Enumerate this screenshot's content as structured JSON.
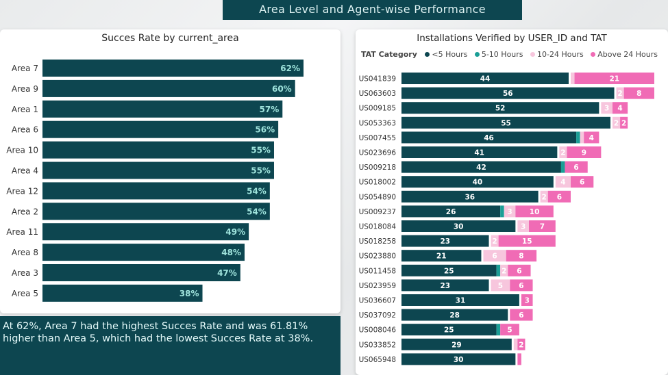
{
  "banner": {
    "title": "Area Level and Agent-wise Performance"
  },
  "colors": {
    "dark": "#0d4650",
    "teal": "#1a9e96",
    "light_pink": "#f7c6dd",
    "pink": "#f06bb5",
    "background": "#eceeef"
  },
  "insight": {
    "text": "At 62%, Area 7 had the highest Succes Rate and was 61.81% higher than Area 5, which had the lowest Succes Rate at 38%."
  },
  "chart_data": [
    {
      "type": "bar",
      "orientation": "horizontal",
      "title": "Succes Rate by current_area",
      "xlabel": "",
      "ylabel": "",
      "categories": [
        "Area 7",
        "Area 9",
        "Area 1",
        "Area 6",
        "Area 10",
        "Area 4",
        "Area 12",
        "Area 2",
        "Area 11",
        "Area 8",
        "Area 3",
        "Area 5"
      ],
      "values": [
        62,
        60,
        57,
        56,
        55,
        55,
        54,
        54,
        49,
        48,
        47,
        38
      ],
      "data_labels": [
        "62%",
        "60%",
        "57%",
        "56%",
        "55%",
        "55%",
        "54%",
        "54%",
        "49%",
        "48%",
        "47%",
        "38%"
      ],
      "xlim": [
        0,
        80
      ],
      "grid": false
    },
    {
      "type": "bar",
      "orientation": "horizontal",
      "stacked": true,
      "title": "Installations Verified by USER_ID and TAT",
      "legend_title": "TAT Category",
      "legend_position": "top-left",
      "categories": [
        "US041839",
        "US063603",
        "US009185",
        "US053363",
        "US007455",
        "US023696",
        "US009218",
        "US018002",
        "US054890",
        "US009237",
        "US018084",
        "US018258",
        "US023880",
        "US011458",
        "US023959",
        "US036607",
        "US037092",
        "US008046",
        "US033852",
        "US065948"
      ],
      "series": [
        {
          "name": "<5 Hours",
          "color": "#0d4650",
          "values": [
            44,
            56,
            52,
            55,
            46,
            41,
            42,
            40,
            36,
            26,
            30,
            23,
            21,
            25,
            23,
            31,
            28,
            25,
            29,
            30
          ]
        },
        {
          "name": "5-10 Hours",
          "color": "#1a9e96",
          "values": [
            0,
            0,
            0,
            0,
            1,
            0,
            1,
            0,
            0,
            1,
            0,
            0,
            0,
            1,
            0,
            0,
            0,
            1,
            0,
            0
          ]
        },
        {
          "name": "10-24 Hours",
          "color": "#f7c6dd",
          "values": [
            1,
            2,
            3,
            2,
            1,
            2,
            0,
            4,
            2,
            3,
            3,
            2,
            6,
            2,
            5,
            0,
            0,
            0,
            1,
            0
          ]
        },
        {
          "name": "Above 24 Hours",
          "color": "#f06bb5",
          "values": [
            21,
            8,
            4,
            2,
            4,
            9,
            6,
            6,
            6,
            10,
            7,
            15,
            8,
            6,
            6,
            3,
            6,
            5,
            2,
            1
          ]
        }
      ],
      "xlim": [
        0,
        70
      ],
      "grid": false
    }
  ]
}
